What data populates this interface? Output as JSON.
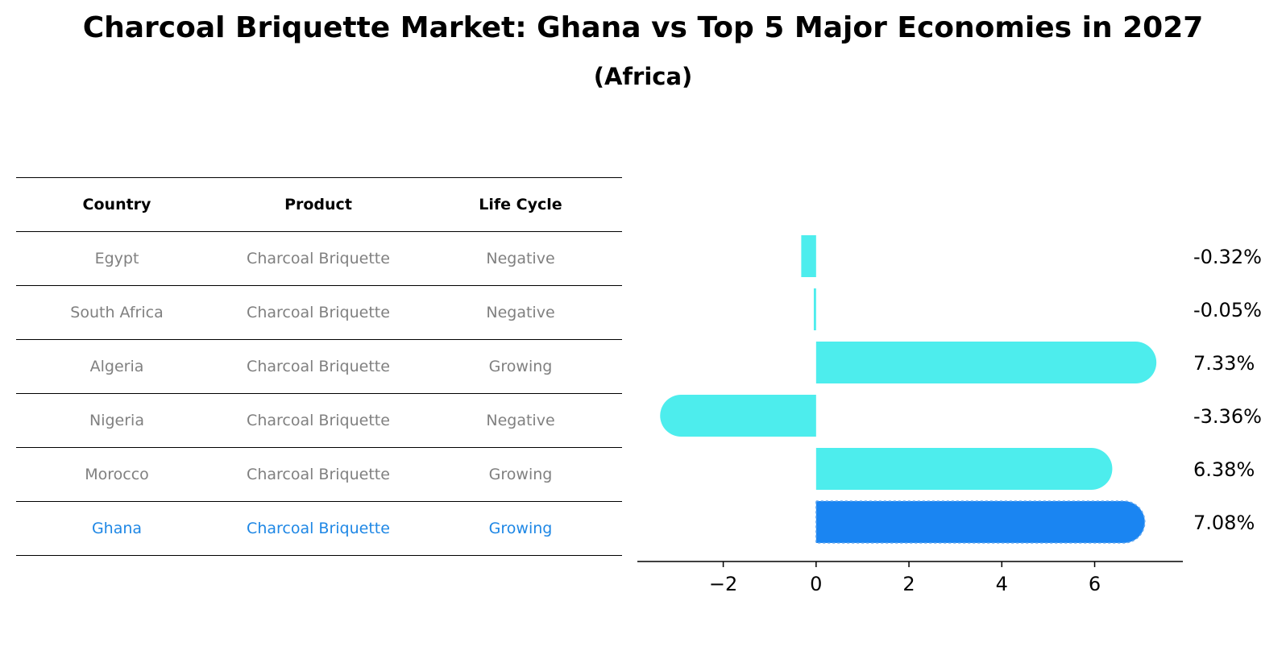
{
  "title": "Charcoal Briquette Market: Ghana vs Top 5 Major Economies in 2027",
  "subtitle": "(Africa)",
  "table": {
    "headers": [
      "Country",
      "Product",
      "Life Cycle"
    ],
    "rows": [
      {
        "country": "Egypt",
        "product": "Charcoal Briquette",
        "life_cycle": "Negative"
      },
      {
        "country": "South Africa",
        "product": "Charcoal Briquette",
        "life_cycle": "Negative"
      },
      {
        "country": "Algeria",
        "product": "Charcoal Briquette",
        "life_cycle": "Growing"
      },
      {
        "country": "Nigeria",
        "product": "Charcoal Briquette",
        "life_cycle": "Negative"
      },
      {
        "country": "Morocco",
        "product": "Charcoal Briquette",
        "life_cycle": "Growing"
      },
      {
        "country": "Ghana",
        "product": "Charcoal Briquette",
        "life_cycle": "Growing"
      }
    ]
  },
  "colors": {
    "bar": "#4deded",
    "highlight_bar": "#1a85f2",
    "highlight_text": "#1e87e5",
    "muted_text": "#808080"
  },
  "chart_data": {
    "type": "bar",
    "orientation": "horizontal",
    "title": "Charcoal Briquette Market: Ghana vs Top 5 Major Economies in 2027",
    "subtitle": "(Africa)",
    "categories": [
      "Egypt",
      "South Africa",
      "Algeria",
      "Nigeria",
      "Morocco",
      "Ghana"
    ],
    "values": [
      -0.32,
      -0.05,
      7.33,
      -3.36,
      6.38,
      7.08
    ],
    "value_labels": [
      "-0.32%",
      "-0.05%",
      "7.33%",
      "-3.36%",
      "6.38%",
      "7.08%"
    ],
    "highlight": "Ghana",
    "xlim": [
      -3.85,
      7.9
    ],
    "xticks": [
      -2,
      0,
      2,
      4,
      6
    ],
    "xtick_labels": [
      "−2",
      "0",
      "2",
      "4",
      "6"
    ],
    "xlabel": "",
    "ylabel": "",
    "grid": false,
    "legend": "none"
  }
}
